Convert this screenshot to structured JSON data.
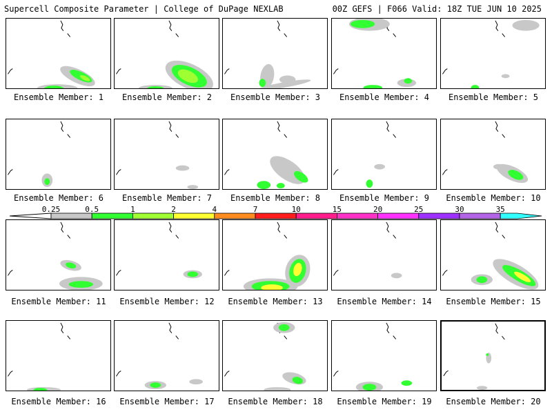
{
  "header": {
    "left": "Supercell Composite Parameter | College of DuPage NEXLAB",
    "right": "00Z GEFS | F066 Valid: 18Z TUE JUN 10 2025"
  },
  "panel_label_prefix": "Ensemble Member:",
  "members": [
    "1",
    "2",
    "3",
    "4",
    "5",
    "6",
    "7",
    "8",
    "9",
    "10",
    "11",
    "12",
    "13",
    "14",
    "15",
    "16",
    "17",
    "18",
    "19",
    "20"
  ],
  "selected_member": "20",
  "colorbar": {
    "ticks": [
      "0.25",
      "0.5",
      "1",
      "2",
      "4",
      "7",
      "10",
      "15",
      "20",
      "25",
      "30",
      "35"
    ],
    "colors": [
      "#c8c8c8",
      "#32ff32",
      "#a0ff32",
      "#ffff32",
      "#ff8c1e",
      "#ff1e1e",
      "#ff1e8c",
      "#ff32c8",
      "#ff32ff",
      "#a032ff",
      "#b464e6",
      "#32ffff"
    ],
    "low_end_color": "#ffffff"
  }
}
